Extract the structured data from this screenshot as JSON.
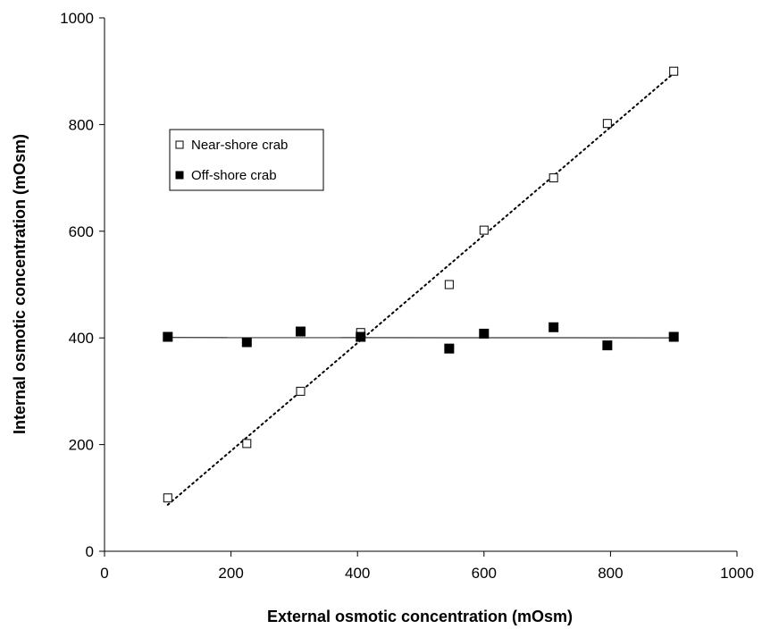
{
  "chart_data": {
    "type": "scatter",
    "xlabel": "External osmotic concentration (mOsm)",
    "ylabel": "Internal osmotic concentration (mOsm)",
    "xlim": [
      0,
      1000
    ],
    "ylim": [
      0,
      1000
    ],
    "xticks": [
      0,
      200,
      400,
      600,
      800,
      1000
    ],
    "yticks": [
      0,
      200,
      400,
      600,
      800,
      1000
    ],
    "grid": false,
    "legend_position": "upper-left inside plot",
    "series": [
      {
        "name": "Near-shore crab",
        "marker": "open-square",
        "trendline": "dotted",
        "x": [
          100,
          225,
          310,
          405,
          545,
          600,
          710,
          795,
          900
        ],
        "y": [
          100,
          202,
          300,
          410,
          500,
          602,
          700,
          802,
          900
        ]
      },
      {
        "name": "Off-shore crab",
        "marker": "filled-square",
        "trendline": "solid",
        "x": [
          100,
          225,
          310,
          405,
          545,
          600,
          710,
          795,
          900
        ],
        "y": [
          402,
          392,
          412,
          402,
          380,
          408,
          420,
          386,
          402
        ]
      }
    ],
    "colors": {
      "marker": "#000000",
      "line": "#000000"
    }
  }
}
